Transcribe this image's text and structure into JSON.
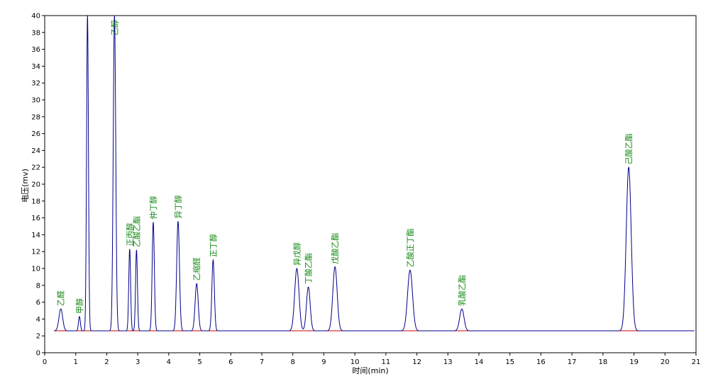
{
  "chart_data": {
    "type": "line",
    "title": "",
    "xlabel": "时间(min)",
    "ylabel": "电压(mv)",
    "xlim": [
      0,
      21
    ],
    "ylim": [
      0,
      40
    ],
    "x_ticks": [
      0,
      1,
      2,
      3,
      4,
      5,
      6,
      7,
      8,
      9,
      10,
      11,
      12,
      13,
      14,
      15,
      16,
      17,
      18,
      19,
      20,
      21
    ],
    "y_ticks": [
      0,
      2,
      4,
      6,
      8,
      10,
      12,
      14,
      16,
      18,
      20,
      22,
      24,
      26,
      28,
      30,
      32,
      34,
      36,
      38,
      40
    ],
    "grid": false,
    "baseline": {
      "value": 2.6,
      "color": "#cc0000"
    },
    "series": [
      {
        "color": "#00008b",
        "baseline": 2.6,
        "peaks": [
          {
            "label": "乙醛",
            "rt": 0.52,
            "height": 5.2,
            "width": 0.06
          },
          {
            "label": "甲醇",
            "rt": 1.12,
            "height": 4.3,
            "width": 0.03
          },
          {
            "label": "",
            "rt": 1.38,
            "height": 40,
            "width": 0.03
          },
          {
            "label": "乙醇",
            "rt": 2.25,
            "height": 40,
            "width": 0.04
          },
          {
            "label": "正丙醇",
            "rt": 2.74,
            "height": 12.3,
            "width": 0.03
          },
          {
            "label": "乙酸乙酯",
            "rt": 2.96,
            "height": 12.2,
            "width": 0.03
          },
          {
            "label": "仲丁醇",
            "rt": 3.5,
            "height": 15.5,
            "width": 0.035
          },
          {
            "label": "异丁醇",
            "rt": 4.3,
            "height": 15.6,
            "width": 0.045
          },
          {
            "label": "乙缩醛",
            "rt": 4.9,
            "height": 8.2,
            "width": 0.05
          },
          {
            "label": "正丁醇",
            "rt": 5.43,
            "height": 11.0,
            "width": 0.04
          },
          {
            "label": "异戊醇",
            "rt": 8.13,
            "height": 10.0,
            "width": 0.07
          },
          {
            "label": "丁酸乙酯",
            "rt": 8.5,
            "height": 7.8,
            "width": 0.06
          },
          {
            "label": "戊酸乙酯",
            "rt": 9.36,
            "height": 10.2,
            "width": 0.07
          },
          {
            "label": "乙酸正丁酯",
            "rt": 11.78,
            "height": 9.8,
            "width": 0.08
          },
          {
            "label": "乳酸乙酯",
            "rt": 13.45,
            "height": 5.2,
            "width": 0.07
          },
          {
            "label": "己酸乙酯",
            "rt": 18.83,
            "height": 22.0,
            "width": 0.08
          }
        ]
      }
    ]
  }
}
